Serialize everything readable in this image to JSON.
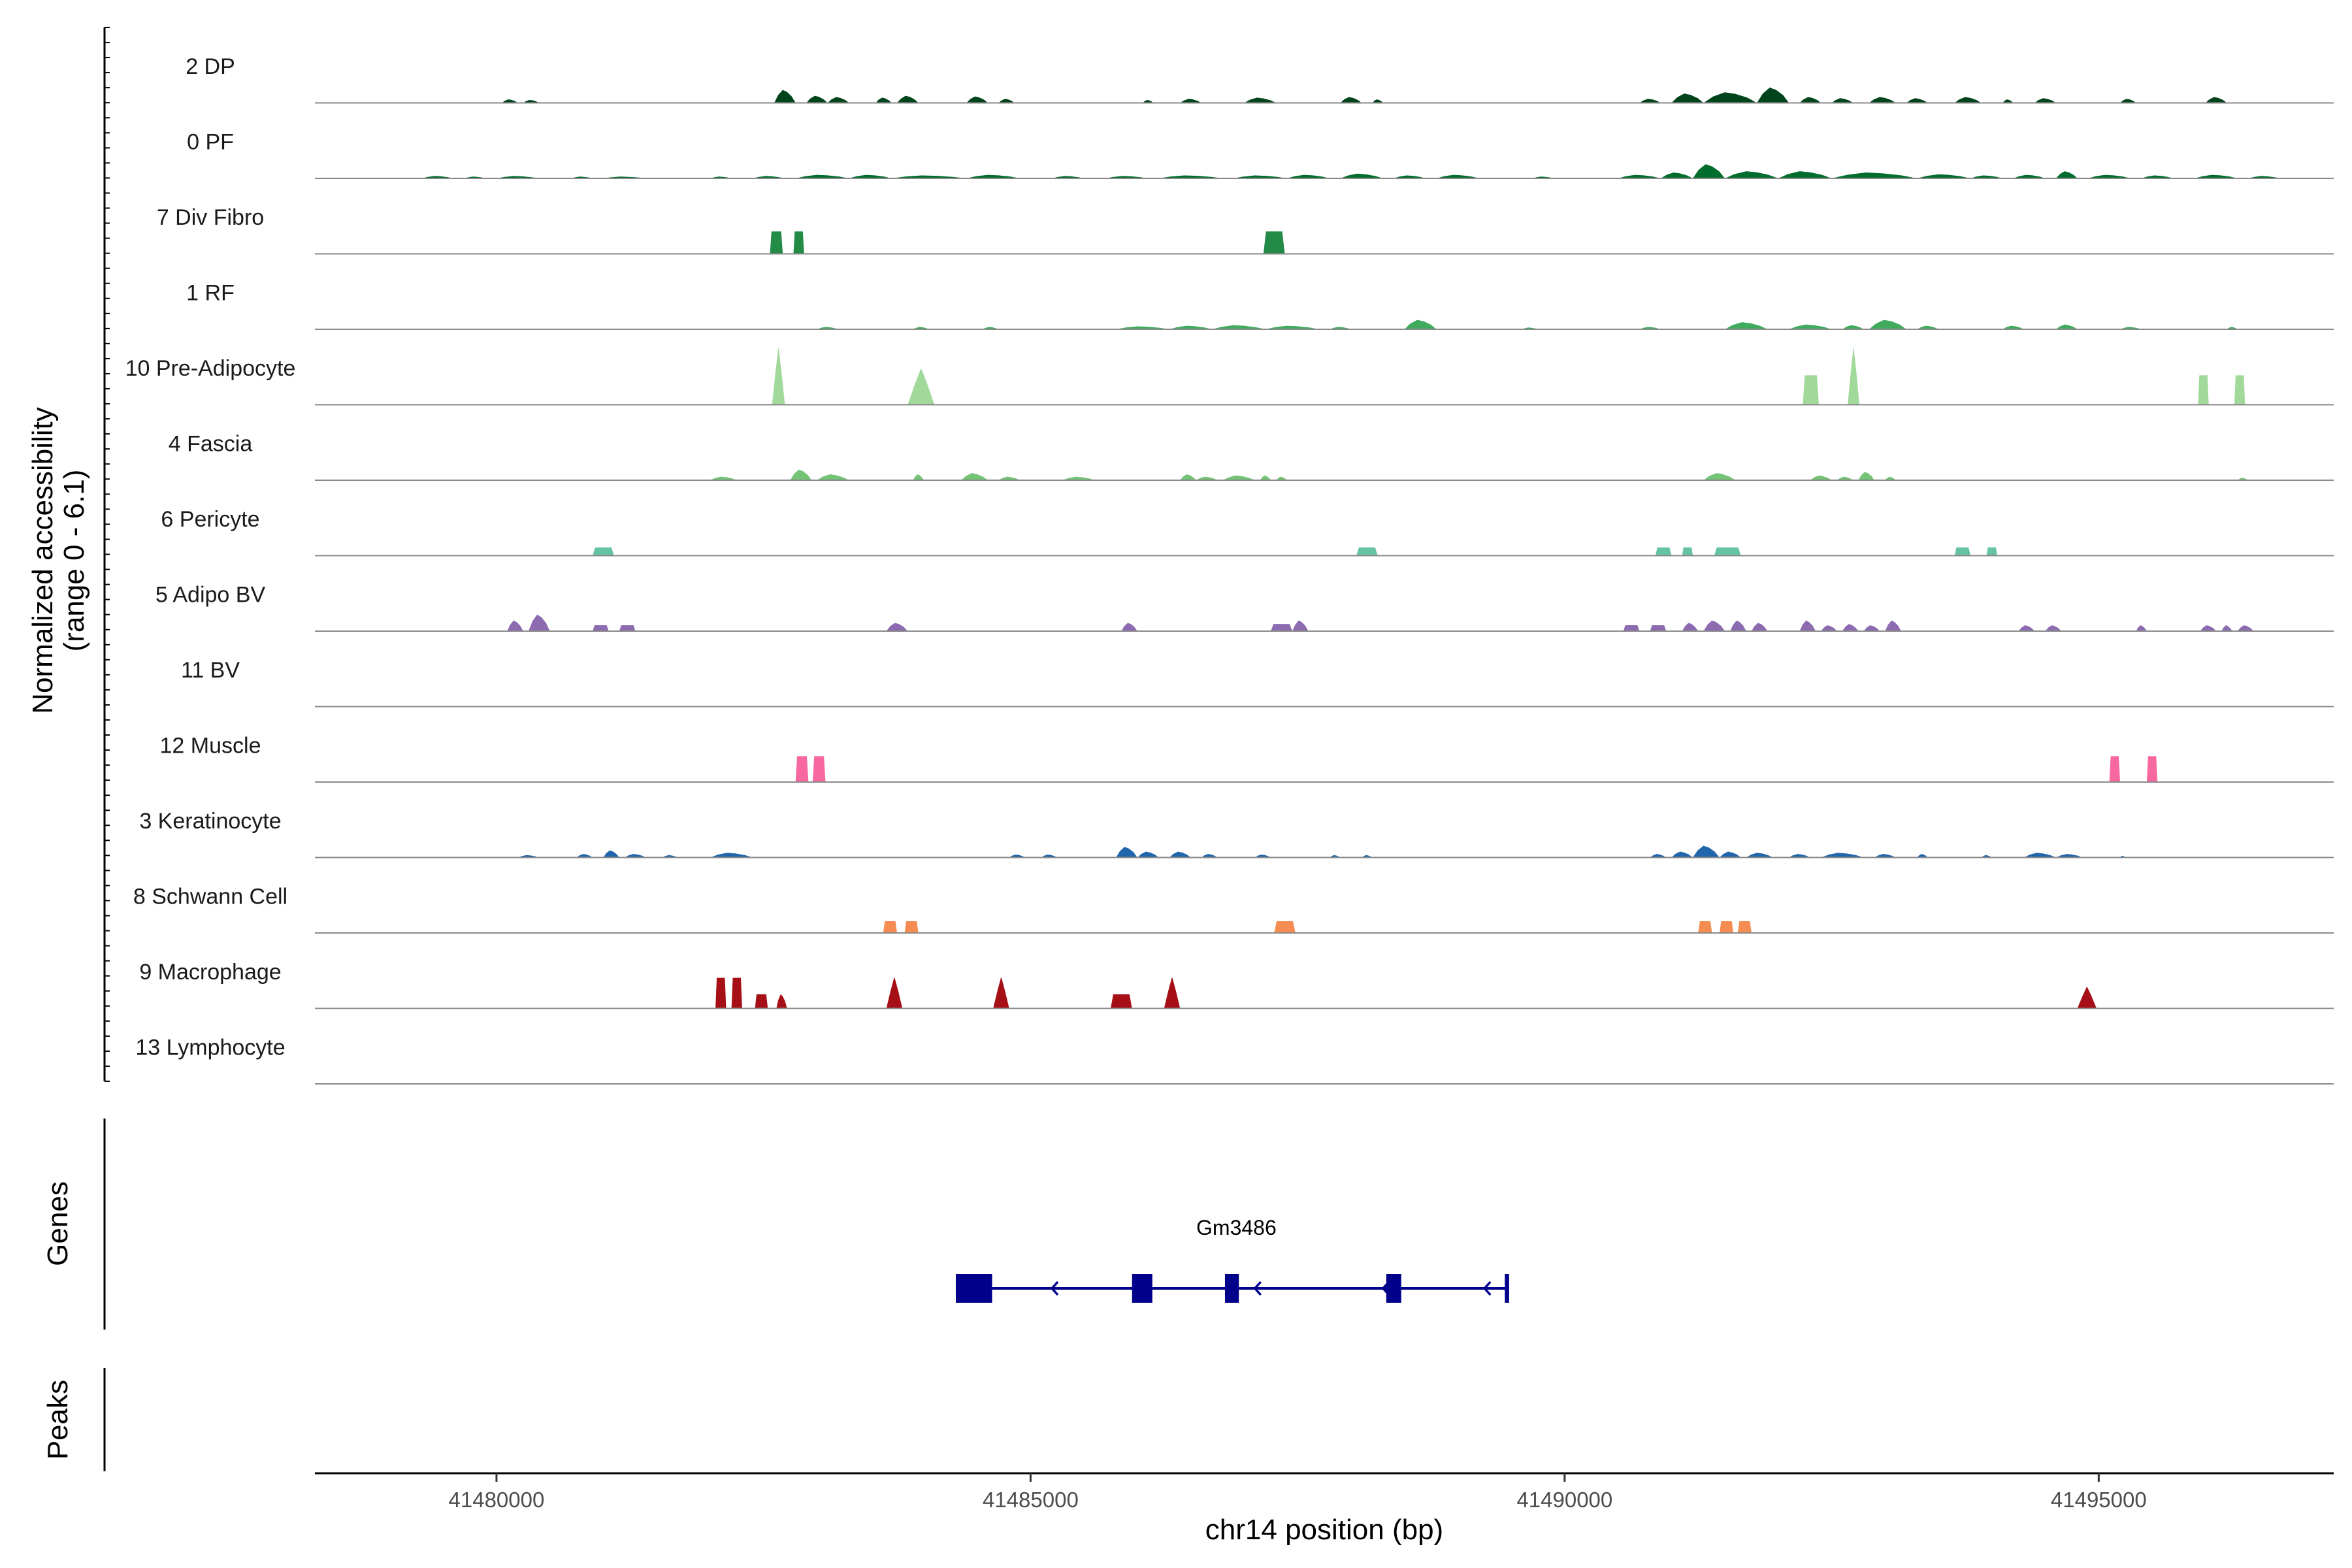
{
  "chart_data": {
    "type": "coverage",
    "xlabel": "chr14 position (bp)",
    "ylabel_line1": "Normalized accessibility",
    "ylabel_line2": "(range 0 - 6.1)",
    "y_range": [
      0,
      6.1
    ],
    "x_range": [
      41478300,
      41497200
    ],
    "x_ticks": [
      {
        "value": 41480000,
        "label": "41480000"
      },
      {
        "value": 41485000,
        "label": "41485000"
      },
      {
        "value": 41490000,
        "label": "41490000"
      },
      {
        "value": 41495000,
        "label": "41495000"
      }
    ],
    "gene_track_label": "Genes",
    "peaks_track_label": "Peaks",
    "gene": {
      "name": "Gm3486",
      "strand": "-",
      "start": 41484300,
      "end": 41489480,
      "exons": [
        [
          41484300,
          41484640
        ],
        [
          41485950,
          41486140
        ],
        [
          41486820,
          41486950
        ],
        [
          41488330,
          41488470
        ],
        [
          41489440,
          41489480
        ]
      ],
      "arrows": [
        41485200,
        41487100,
        41488300,
        41489250
      ],
      "color": "#00008b"
    },
    "tracks": [
      {
        "name": "2 DP",
        "color": "#00441b",
        "peaks": [
          [
            41480050,
            41480200,
            0.3
          ],
          [
            41480250,
            41480400,
            0.25
          ],
          [
            41482600,
            41482800,
            1.1
          ],
          [
            41482900,
            41483100,
            0.6
          ],
          [
            41483100,
            41483300,
            0.5
          ],
          [
            41483550,
            41483700,
            0.45
          ],
          [
            41483750,
            41483950,
            0.6
          ],
          [
            41484400,
            41484600,
            0.55
          ],
          [
            41484700,
            41484850,
            0.35
          ],
          [
            41486050,
            41486150,
            0.25
          ],
          [
            41486400,
            41486600,
            0.35
          ],
          [
            41487000,
            41487300,
            0.45
          ],
          [
            41487900,
            41488100,
            0.5
          ],
          [
            41488200,
            41488300,
            0.3
          ],
          [
            41490700,
            41490900,
            0.35
          ],
          [
            41491000,
            41491300,
            0.8
          ],
          [
            41491300,
            41491800,
            0.9
          ],
          [
            41491800,
            41492100,
            1.3
          ],
          [
            41492200,
            41492400,
            0.5
          ],
          [
            41492500,
            41492700,
            0.4
          ],
          [
            41492850,
            41493100,
            0.5
          ],
          [
            41493200,
            41493400,
            0.4
          ],
          [
            41493650,
            41493900,
            0.5
          ],
          [
            41494100,
            41494200,
            0.3
          ],
          [
            41494400,
            41494600,
            0.4
          ],
          [
            41495200,
            41495350,
            0.35
          ],
          [
            41496000,
            41496200,
            0.5
          ]
        ]
      },
      {
        "name": "0 PF",
        "color": "#006d2c",
        "peaks": [
          [
            41479300,
            41479600,
            0.2
          ],
          [
            41479700,
            41479900,
            0.15
          ],
          [
            41480000,
            41480400,
            0.2
          ],
          [
            41480700,
            41480900,
            0.15
          ],
          [
            41481000,
            41481400,
            0.15
          ],
          [
            41482000,
            41482200,
            0.15
          ],
          [
            41482400,
            41482700,
            0.2
          ],
          [
            41482800,
            41483300,
            0.3
          ],
          [
            41483300,
            41483700,
            0.3
          ],
          [
            41483700,
            41484400,
            0.25
          ],
          [
            41484400,
            41484900,
            0.3
          ],
          [
            41485200,
            41485500,
            0.2
          ],
          [
            41485700,
            41486100,
            0.2
          ],
          [
            41486200,
            41486800,
            0.25
          ],
          [
            41486900,
            41487400,
            0.25
          ],
          [
            41487400,
            41487800,
            0.3
          ],
          [
            41487900,
            41488300,
            0.4
          ],
          [
            41488400,
            41488700,
            0.25
          ],
          [
            41488800,
            41489200,
            0.3
          ],
          [
            41489700,
            41489900,
            0.15
          ],
          [
            41490500,
            41490900,
            0.3
          ],
          [
            41490900,
            41491200,
            0.5
          ],
          [
            41491200,
            41491500,
            1.2
          ],
          [
            41491500,
            41492000,
            0.6
          ],
          [
            41492000,
            41492500,
            0.6
          ],
          [
            41492500,
            41493300,
            0.5
          ],
          [
            41493300,
            41493800,
            0.35
          ],
          [
            41493800,
            41494100,
            0.25
          ],
          [
            41494200,
            41494500,
            0.3
          ],
          [
            41494600,
            41494800,
            0.6
          ],
          [
            41494900,
            41495300,
            0.3
          ],
          [
            41495400,
            41495700,
            0.25
          ],
          [
            41495900,
            41496300,
            0.3
          ],
          [
            41496400,
            41496700,
            0.2
          ]
        ]
      },
      {
        "name": "7 Div Fibro",
        "color": "#238b45",
        "peaks": [
          [
            41482560,
            41482680,
            1.9,
            "flat"
          ],
          [
            41482780,
            41482880,
            1.9,
            "flat"
          ],
          [
            41487180,
            41487380,
            1.9,
            "flat"
          ]
        ]
      },
      {
        "name": "1 RF",
        "color": "#41ab5d",
        "peaks": [
          [
            41483000,
            41483200,
            0.2
          ],
          [
            41483900,
            41484050,
            0.2
          ],
          [
            41484550,
            41484700,
            0.2
          ],
          [
            41485800,
            41486300,
            0.25
          ],
          [
            41486300,
            41486700,
            0.3
          ],
          [
            41486700,
            41487200,
            0.35
          ],
          [
            41487200,
            41487700,
            0.3
          ],
          [
            41487800,
            41488000,
            0.2
          ],
          [
            41488500,
            41488800,
            0.8
          ],
          [
            41489600,
            41489750,
            0.15
          ],
          [
            41490700,
            41490900,
            0.2
          ],
          [
            41491500,
            41491900,
            0.6
          ],
          [
            41492100,
            41492500,
            0.4
          ],
          [
            41492600,
            41492800,
            0.35
          ],
          [
            41492850,
            41493200,
            0.8
          ],
          [
            41493300,
            41493500,
            0.3
          ],
          [
            41494100,
            41494300,
            0.3
          ],
          [
            41494600,
            41494800,
            0.4
          ],
          [
            41495200,
            41495400,
            0.2
          ],
          [
            41496200,
            41496300,
            0.2
          ]
        ]
      },
      {
        "name": "10 Pre-Adipocyte",
        "color": "#a1d99b",
        "peaks": [
          [
            41482580,
            41482700,
            4.8,
            "spike"
          ],
          [
            41483850,
            41484100,
            3.0,
            "spike"
          ],
          [
            41492230,
            41492380,
            2.5,
            "flat"
          ],
          [
            41492650,
            41492760,
            4.8,
            "spike"
          ],
          [
            41495930,
            41496030,
            2.5,
            "flat"
          ],
          [
            41496270,
            41496370,
            2.5,
            "flat"
          ]
        ]
      },
      {
        "name": "4 Fascia",
        "color": "#74c476",
        "peaks": [
          [
            41482000,
            41482250,
            0.3
          ],
          [
            41482750,
            41482950,
            0.9
          ],
          [
            41483000,
            41483300,
            0.5
          ],
          [
            41483900,
            41484000,
            0.5
          ],
          [
            41484350,
            41484600,
            0.6
          ],
          [
            41484700,
            41484900,
            0.3
          ],
          [
            41485300,
            41485600,
            0.3
          ],
          [
            41486400,
            41486550,
            0.5
          ],
          [
            41486550,
            41486750,
            0.3
          ],
          [
            41486800,
            41487100,
            0.4
          ],
          [
            41487150,
            41487250,
            0.4
          ],
          [
            41487300,
            41487400,
            0.3
          ],
          [
            41491300,
            41491600,
            0.6
          ],
          [
            41492300,
            41492500,
            0.4
          ],
          [
            41492550,
            41492700,
            0.3
          ],
          [
            41492750,
            41492900,
            0.7
          ],
          [
            41493000,
            41493100,
            0.3
          ],
          [
            41496300,
            41496400,
            0.2
          ]
        ]
      },
      {
        "name": "6 Pericyte",
        "color": "#66c2a4",
        "peaks": [
          [
            41480900,
            41481100,
            0.7,
            "flat"
          ],
          [
            41488050,
            41488250,
            0.7,
            "flat"
          ],
          [
            41490850,
            41491000,
            0.7,
            "flat"
          ],
          [
            41491100,
            41491200,
            0.7,
            "flat"
          ],
          [
            41491400,
            41491650,
            0.7,
            "flat"
          ],
          [
            41493650,
            41493800,
            0.7,
            "flat"
          ],
          [
            41493950,
            41494050,
            0.7,
            "flat"
          ]
        ]
      },
      {
        "name": "5 Adipo BV",
        "color": "#8c6bb1",
        "peaks": [
          [
            41480100,
            41480250,
            0.9
          ],
          [
            41480300,
            41480500,
            1.4
          ],
          [
            41480900,
            41481050,
            0.5,
            "flat"
          ],
          [
            41481150,
            41481300,
            0.5,
            "flat"
          ],
          [
            41483650,
            41483850,
            0.7
          ],
          [
            41485850,
            41486000,
            0.7
          ],
          [
            41487250,
            41487450,
            0.6,
            "flat"
          ],
          [
            41487450,
            41487600,
            0.9
          ],
          [
            41490550,
            41490700,
            0.5,
            "flat"
          ],
          [
            41490800,
            41490950,
            0.5,
            "flat"
          ],
          [
            41491100,
            41491250,
            0.7
          ],
          [
            41491300,
            41491500,
            0.9
          ],
          [
            41491550,
            41491700,
            0.9
          ],
          [
            41491750,
            41491900,
            0.7
          ],
          [
            41492200,
            41492350,
            0.9
          ],
          [
            41492400,
            41492550,
            0.5
          ],
          [
            41492600,
            41492750,
            0.6
          ],
          [
            41492800,
            41492950,
            0.5
          ],
          [
            41493000,
            41493150,
            0.9
          ],
          [
            41494250,
            41494400,
            0.5
          ],
          [
            41494500,
            41494650,
            0.5
          ],
          [
            41495350,
            41495450,
            0.5
          ],
          [
            41495950,
            41496100,
            0.5
          ],
          [
            41496150,
            41496250,
            0.5
          ],
          [
            41496300,
            41496450,
            0.5
          ]
        ]
      },
      {
        "name": "11 BV",
        "color": "#3182bd",
        "peaks": []
      },
      {
        "name": "12 Muscle",
        "color": "#f768a1",
        "peaks": [
          [
            41482800,
            41482920,
            2.2,
            "flat"
          ],
          [
            41482960,
            41483080,
            2.2,
            "flat"
          ],
          [
            41495100,
            41495200,
            2.2,
            "flat"
          ],
          [
            41495450,
            41495550,
            2.2,
            "flat"
          ]
        ]
      },
      {
        "name": "3 Keratinocyte",
        "color": "#2166ac",
        "peaks": [
          [
            41480200,
            41480400,
            0.2
          ],
          [
            41480750,
            41480900,
            0.3
          ],
          [
            41481000,
            41481150,
            0.6
          ],
          [
            41481200,
            41481400,
            0.3
          ],
          [
            41481550,
            41481700,
            0.2
          ],
          [
            41482000,
            41482400,
            0.4
          ],
          [
            41484800,
            41484950,
            0.25
          ],
          [
            41485100,
            41485250,
            0.25
          ],
          [
            41485800,
            41486000,
            0.9
          ],
          [
            41486000,
            41486200,
            0.5
          ],
          [
            41486300,
            41486500,
            0.5
          ],
          [
            41486600,
            41486750,
            0.3
          ],
          [
            41487100,
            41487250,
            0.25
          ],
          [
            41487800,
            41487900,
            0.2
          ],
          [
            41488100,
            41488200,
            0.2
          ],
          [
            41490800,
            41490950,
            0.3
          ],
          [
            41491000,
            41491200,
            0.5
          ],
          [
            41491200,
            41491450,
            1.0
          ],
          [
            41491450,
            41491650,
            0.5
          ],
          [
            41491700,
            41491950,
            0.4
          ],
          [
            41492100,
            41492300,
            0.3
          ],
          [
            41492400,
            41492800,
            0.4
          ],
          [
            41492900,
            41493100,
            0.3
          ],
          [
            41493300,
            41493400,
            0.3
          ],
          [
            41493900,
            41494000,
            0.2
          ],
          [
            41494300,
            41494600,
            0.4
          ],
          [
            41494600,
            41494850,
            0.3
          ],
          [
            41495200,
            41495250,
            0.15
          ]
        ]
      },
      {
        "name": "8 Schwann Cell",
        "color": "#f58d52",
        "peaks": [
          [
            41483620,
            41483750,
            1.0,
            "flat"
          ],
          [
            41483820,
            41483950,
            1.0,
            "flat"
          ],
          [
            41487280,
            41487480,
            1.0,
            "flat"
          ],
          [
            41491250,
            41491380,
            1.0,
            "flat"
          ],
          [
            41491450,
            41491580,
            1.0,
            "flat"
          ],
          [
            41491620,
            41491750,
            1.0,
            "flat"
          ]
        ]
      },
      {
        "name": "9 Macrophage",
        "color": "#a50f15",
        "peaks": [
          [
            41482050,
            41482150,
            2.6,
            "flat"
          ],
          [
            41482200,
            41482300,
            2.6,
            "flat"
          ],
          [
            41482420,
            41482540,
            1.2,
            "flat"
          ],
          [
            41482620,
            41482720,
            1.2
          ],
          [
            41483650,
            41483800,
            2.6,
            "spike"
          ],
          [
            41484650,
            41484800,
            2.6,
            "spike"
          ],
          [
            41485750,
            41485950,
            1.2,
            "flat"
          ],
          [
            41486250,
            41486400,
            2.6,
            "spike"
          ],
          [
            41494800,
            41494980,
            1.8,
            "spike"
          ]
        ]
      },
      {
        "name": "13 Lymphocyte",
        "color": "#6a51a3",
        "peaks": []
      }
    ]
  }
}
